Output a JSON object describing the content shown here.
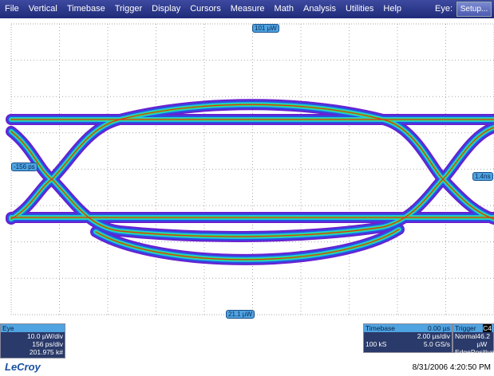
{
  "menu": {
    "items": [
      "File",
      "Vertical",
      "Timebase",
      "Trigger",
      "Display",
      "Cursors",
      "Measure",
      "Math",
      "Analysis",
      "Utilities",
      "Help"
    ],
    "eye_label": "Eye:",
    "setup": "Setup..."
  },
  "markers": {
    "top": "101 µW",
    "left": "-156 ps",
    "right": "1.4ns",
    "bottom": "21.1 µW"
  },
  "eye_panel": {
    "title": "Eye",
    "lines": [
      "10.0 µW/div",
      "156 ps/div",
      "201.975 k#"
    ]
  },
  "timebase_panel": {
    "title": "Timebase",
    "offset": "0.00 µs",
    "per_div": "2.00 µs/div",
    "samples": "100 kS",
    "rate": "5.0 GS/s"
  },
  "trigger_panel": {
    "title": "Trigger",
    "source": "C4",
    "mode": "Normal",
    "level": "46.2 µW",
    "type": "Edge",
    "slope": "Positive"
  },
  "footer": {
    "brand": "LeCroy",
    "timestamp": "8/31/2006 4:20:50 PM"
  }
}
